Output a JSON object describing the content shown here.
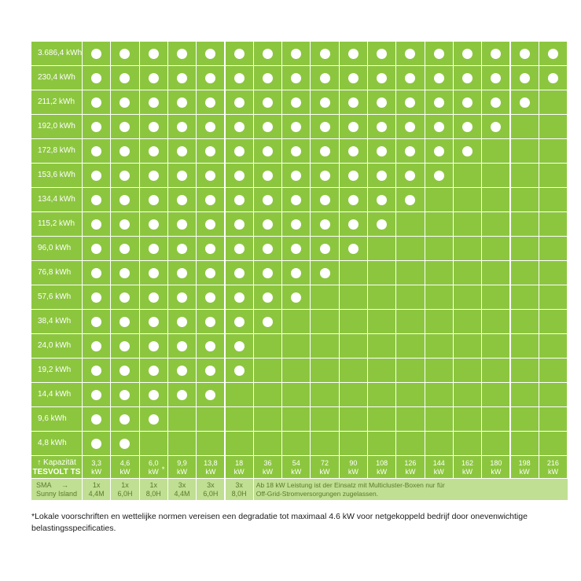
{
  "colors": {
    "cell_green": "#8cc63f",
    "row_green": "#c0df92",
    "dot": "#ffffff",
    "grid_line": "#ffffff"
  },
  "chart_data": {
    "type": "table",
    "title": "",
    "row_header": "Kapazität TESVOLT TS",
    "rows": [
      "3.686,4 kWh",
      "230,4 kWh",
      "211,2 kWh",
      "192,0 kWh",
      "172,8 kWh",
      "153,6 kWh",
      "134,4 kWh",
      "115,2 kWh",
      "96,0 kWh",
      "76,8 kWh",
      "57,6 kWh",
      "38,4 kWh",
      "24,0 kWh",
      "19,2 kWh",
      "14,4 kWh",
      "9,6 kWh",
      "4,8 kWh"
    ],
    "columns": [
      {
        "top": "3,3",
        "bottom": "kW",
        "star": false
      },
      {
        "top": "4,6",
        "bottom": "kW",
        "star": false
      },
      {
        "top": "6,0",
        "bottom": "kW",
        "star": true
      },
      {
        "top": "9,9",
        "bottom": "kW",
        "star": false
      },
      {
        "top": "13,8",
        "bottom": "kW",
        "star": false
      },
      {
        "top": "18",
        "bottom": "kW",
        "star": false
      },
      {
        "top": "36",
        "bottom": "kW",
        "star": false
      },
      {
        "top": "54",
        "bottom": "kW",
        "star": false
      },
      {
        "top": "72",
        "bottom": "kW",
        "star": false
      },
      {
        "top": "90",
        "bottom": "kW",
        "star": false
      },
      {
        "top": "108",
        "bottom": "kW",
        "star": false
      },
      {
        "top": "126",
        "bottom": "kW",
        "star": false
      },
      {
        "top": "144",
        "bottom": "kW",
        "star": false
      },
      {
        "top": "162",
        "bottom": "kW",
        "star": false
      },
      {
        "top": "180",
        "bottom": "kW",
        "star": false
      },
      {
        "top": "198",
        "bottom": "kW",
        "star": false
      },
      {
        "top": "216",
        "bottom": "kW",
        "star": false
      }
    ],
    "dots_per_row": [
      17,
      17,
      16,
      15,
      14,
      13,
      12,
      11,
      10,
      9,
      8,
      7,
      6,
      6,
      5,
      3,
      2
    ],
    "star_mark": "*"
  },
  "header": {
    "capacity_arrow": "↑",
    "capacity_label": "Kapazität",
    "capacity_brand": "TESVOLT TS"
  },
  "sma": {
    "label_top": "SMA",
    "arrow": "→",
    "label_bottom": "Sunny Island",
    "columns": [
      {
        "top": "1x",
        "bottom": "4,4M"
      },
      {
        "top": "1x",
        "bottom": "6,0H"
      },
      {
        "top": "1x",
        "bottom": "8,0H"
      },
      {
        "top": "3x",
        "bottom": "4,4M"
      },
      {
        "top": "3x",
        "bottom": "6,0H"
      },
      {
        "top": "3x",
        "bottom": "8,0H"
      }
    ],
    "note": "Ab 18 kW Leistung ist der Einsatz mit Multicluster-Boxen nur für Off-Grid-Stromversorgungen zugelassen.",
    "note_line1": "Ab 18 kW Leistung ist der Einsatz mit Multicluster-Boxen nur für",
    "note_line2": "Off-Grid-Stromversorgungen zugelassen."
  },
  "footnote": "*Lokale voorschriften en wettelijke normen vereisen een degradatie tot maximaal 4.6 kW voor netgekoppeld bedrijf door onevenwichtige belastingsspecificaties."
}
